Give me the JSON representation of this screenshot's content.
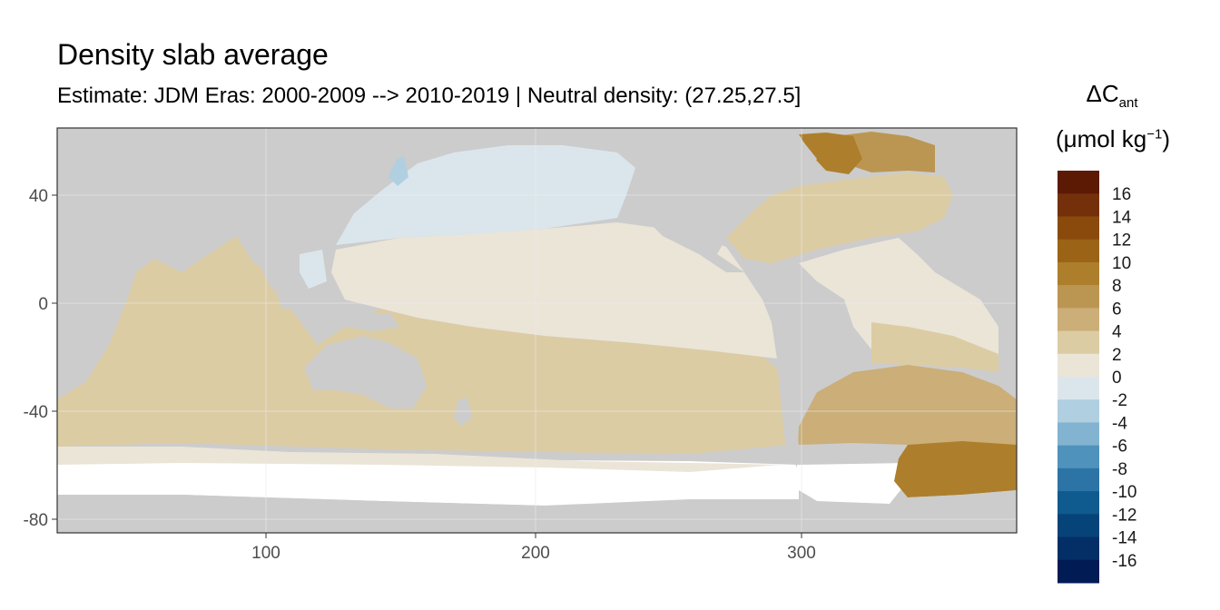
{
  "title": "Density slab average",
  "subtitle": "Estimate: JDM Eras: 2000-2009 --> 2010-2019 | Neutral density: (27.25,27.5]",
  "legend": {
    "symbol": "ΔC",
    "subscript": "ant",
    "unit_open": "(μmol kg",
    "unit_exp": "−1",
    "unit_close": ")",
    "bins": [
      {
        "from": 16,
        "to": 18,
        "color": "#5c1a05"
      },
      {
        "from": 14,
        "to": 16,
        "color": "#74300a"
      },
      {
        "from": 12,
        "to": 14,
        "color": "#8a4a0b"
      },
      {
        "from": 10,
        "to": 12,
        "color": "#9b6315"
      },
      {
        "from": 8,
        "to": 10,
        "color": "#ad7f2c"
      },
      {
        "from": 6,
        "to": 8,
        "color": "#bb9652"
      },
      {
        "from": 4,
        "to": 6,
        "color": "#cbae78"
      },
      {
        "from": 2,
        "to": 4,
        "color": "#dccca4"
      },
      {
        "from": 0,
        "to": 2,
        "color": "#ebe5d8"
      },
      {
        "from": -2,
        "to": 0,
        "color": "#dbe6ec"
      },
      {
        "from": -4,
        "to": -2,
        "color": "#b0cfe0"
      },
      {
        "from": -6,
        "to": -4,
        "color": "#82b3d0"
      },
      {
        "from": -8,
        "to": -6,
        "color": "#4f92bc"
      },
      {
        "from": -10,
        "to": -8,
        "color": "#2c74a6"
      },
      {
        "from": -12,
        "to": -10,
        "color": "#0f5a8e"
      },
      {
        "from": -14,
        "to": -12,
        "color": "#064378"
      },
      {
        "from": -16,
        "to": -14,
        "color": "#032f66"
      },
      {
        "from": -18,
        "to": -16,
        "color": "#011b54"
      }
    ],
    "labels": [
      "16",
      "14",
      "12",
      "10",
      "8",
      "6",
      "4",
      "2",
      "0",
      "-2",
      "-4",
      "-6",
      "-8",
      "-10",
      "-12",
      "-14",
      "-16"
    ]
  },
  "axes": {
    "x_ticks": [
      "100",
      "200",
      "300"
    ],
    "y_ticks": [
      "40",
      "0",
      "-40",
      "-80"
    ]
  },
  "colors": {
    "land": "#cccccc",
    "no_data": "#ffffff",
    "grid": "#ebebeb",
    "panel_border": "#333333"
  }
}
